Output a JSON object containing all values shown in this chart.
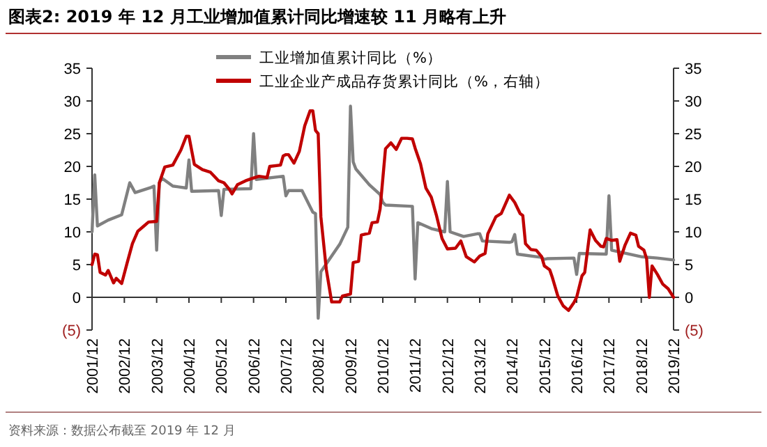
{
  "chart_data": {
    "type": "line",
    "title": "图表2:  2019 年 12 月工业增加值累计同比增速较 11 月略有上升",
    "annotations": [
      "资料来源：数据公布截至 2019 年 12 月"
    ],
    "legend": "top",
    "xlim": [
      "2001-12",
      "2019-12"
    ],
    "xticks": [
      {
        "value": "2001-12",
        "label": "2001/12"
      },
      {
        "value": "2002-12",
        "label": "2002/12"
      },
      {
        "value": "2003-12",
        "label": "2003/12"
      },
      {
        "value": "2004-12",
        "label": "2004/12"
      },
      {
        "value": "2005-12",
        "label": "2005/12"
      },
      {
        "value": "2006-12",
        "label": "2006/12"
      },
      {
        "value": "2007-12",
        "label": "2007/12"
      },
      {
        "value": "2008-12",
        "label": "2008/12"
      },
      {
        "value": "2009-12",
        "label": "2009/12"
      },
      {
        "value": "2010-12",
        "label": "2010/12"
      },
      {
        "value": "2011-12",
        "label": "2011/12"
      },
      {
        "value": "2012-12",
        "label": "2012/12"
      },
      {
        "value": "2013-12",
        "label": "2013/12"
      },
      {
        "value": "2014-12",
        "label": "2014/12"
      },
      {
        "value": "2015-12",
        "label": "2015/12"
      },
      {
        "value": "2016-12",
        "label": "2016/12"
      },
      {
        "value": "2017-12",
        "label": "2017/12"
      },
      {
        "value": "2018-12",
        "label": "2018/12"
      },
      {
        "value": "2019-12",
        "label": "2019/12"
      }
    ],
    "ylim": [
      -5,
      35
    ],
    "yticks": [
      {
        "value": -5,
        "label": "(5)"
      },
      0,
      5,
      10,
      15,
      20,
      25,
      30,
      35
    ],
    "y2lim": [
      -5,
      35
    ],
    "y2ticks": [
      {
        "value": -5,
        "label": "(5)"
      },
      0,
      5,
      10,
      15,
      20,
      25,
      30,
      35
    ],
    "series": [
      {
        "name": "工业增加值累计同比（%）",
        "color": "#808080",
        "x": [
          "2001-12",
          "2002-01",
          "2002-02",
          "2002-06",
          "2002-11",
          "2003-02",
          "2003-04",
          "2003-10",
          "2003-11",
          "2003-12",
          "2004-01",
          "2004-02",
          "2004-06",
          "2004-11",
          "2004-12",
          "2005-01",
          "2005-11",
          "2005-12",
          "2006-01",
          "2006-11",
          "2006-12",
          "2007-01",
          "2007-11",
          "2007-12",
          "2008-01",
          "2008-06",
          "2008-10",
          "2008-11",
          "2008-12",
          "2009-01",
          "2009-03",
          "2009-08",
          "2009-11",
          "2009-12",
          "2010-01",
          "2010-02",
          "2010-07",
          "2010-11",
          "2010-12",
          "2011-01",
          "2011-11",
          "2011-12",
          "2012-01",
          "2012-06",
          "2012-11",
          "2012-12",
          "2013-01",
          "2013-06",
          "2013-11",
          "2013-12",
          "2014-01",
          "2014-11",
          "2014-12",
          "2015-01",
          "2015-02",
          "2015-11",
          "2015-12",
          "2016-01",
          "2016-11",
          "2016-12",
          "2017-01",
          "2017-11",
          "2017-12",
          "2018-01",
          "2018-11",
          "2018-12",
          "2019-06",
          "2019-12"
        ],
        "values": [
          10,
          18.7,
          10.9,
          11.8,
          12.6,
          17.5,
          16,
          16.8,
          17,
          7.2,
          17.5,
          18.2,
          17,
          16.7,
          21,
          16.2,
          16.3,
          12.5,
          16.5,
          16.6,
          25,
          18,
          18.5,
          15.5,
          16.3,
          16.3,
          13,
          12.8,
          -3.2,
          3.9,
          5.1,
          8.1,
          10.7,
          29.2,
          20.7,
          19.6,
          17.2,
          15.7,
          14.5,
          14.1,
          13.9,
          2.8,
          11.4,
          10.5,
          10,
          17.7,
          10,
          9.3,
          9.7,
          9.7,
          8.6,
          8.4,
          8.5,
          9.6,
          6.6,
          6.1,
          5.8,
          5.9,
          6,
          3.5,
          6.7,
          6.6,
          15.5,
          7.2,
          6.3,
          6.2,
          6,
          5.7
        ]
      },
      {
        "name": "工业企业产成品存货累计同比（%，右轴）",
        "color": "#c00000",
        "x": [
          "2001-12",
          "2002-01",
          "2002-02",
          "2002-03",
          "2002-05",
          "2002-06",
          "2002-08",
          "2002-09",
          "2002-11",
          "2003-01",
          "2003-03",
          "2003-05",
          "2003-07",
          "2003-09",
          "2003-12",
          "2004-01",
          "2004-03",
          "2004-06",
          "2004-09",
          "2004-11",
          "2004-12",
          "2005-02",
          "2005-05",
          "2005-08",
          "2005-11",
          "2006-01",
          "2006-03",
          "2006-04",
          "2006-06",
          "2006-09",
          "2006-11",
          "2007-02",
          "2007-05",
          "2007-06",
          "2007-10",
          "2007-11",
          "2007-12",
          "2008-01",
          "2008-03",
          "2008-05",
          "2008-07",
          "2008-09",
          "2008-10",
          "2008-11",
          "2008-12",
          "2009-01",
          "2009-03",
          "2009-05",
          "2009-08",
          "2009-09",
          "2009-12",
          "2010-01",
          "2010-03",
          "2010-04",
          "2010-07",
          "2010-08",
          "2010-10",
          "2010-11",
          "2011-01",
          "2011-03",
          "2011-05",
          "2011-07",
          "2011-09",
          "2011-11",
          "2011-12",
          "2012-02",
          "2012-04",
          "2012-06",
          "2012-08",
          "2012-10",
          "2012-12",
          "2013-03",
          "2013-05",
          "2013-07",
          "2013-10",
          "2013-12",
          "2014-02",
          "2014-03",
          "2014-06",
          "2014-08",
          "2014-11",
          "2015-01",
          "2015-03",
          "2015-04",
          "2015-05",
          "2015-07",
          "2015-09",
          "2015-11",
          "2015-12",
          "2016-02",
          "2016-03",
          "2016-05",
          "2016-07",
          "2016-09",
          "2016-11",
          "2016-12",
          "2017-02",
          "2017-03",
          "2017-05",
          "2017-07",
          "2017-09",
          "2017-10",
          "2017-11",
          "2018-01",
          "2018-03",
          "2018-04",
          "2018-06",
          "2018-08",
          "2018-10",
          "2018-11",
          "2019-01",
          "2019-02",
          "2019-03",
          "2019-04",
          "2019-06",
          "2019-08",
          "2019-10",
          "2019-12"
        ],
        "values": [
          5,
          6.6,
          6.5,
          3.8,
          3.4,
          4.1,
          2.2,
          2.9,
          2.1,
          5.2,
          8.2,
          10.1,
          10.8,
          11.5,
          11.6,
          17.5,
          19.9,
          20.2,
          22.5,
          24.6,
          24.6,
          20.3,
          19.5,
          19.1,
          17.8,
          17.5,
          16.5,
          15.8,
          17.2,
          17.8,
          18.1,
          18.5,
          18.3,
          20,
          20.2,
          21.6,
          21.8,
          21.8,
          20.5,
          22.3,
          26.2,
          28.5,
          28.5,
          25.5,
          25,
          12.3,
          4.3,
          -0.7,
          -0.7,
          0.2,
          0.5,
          5.3,
          5.5,
          9.5,
          9.8,
          11.4,
          11.5,
          13.5,
          22.7,
          23.6,
          22.6,
          24.3,
          24.3,
          24.2,
          22.8,
          20.4,
          16.7,
          15.3,
          12.4,
          9,
          7.4,
          7.5,
          8.6,
          6.2,
          5.4,
          6.3,
          6.7,
          9.7,
          12.3,
          12.8,
          15.6,
          14.5,
          12.8,
          12.5,
          8.2,
          7.3,
          7.2,
          6.2,
          4.8,
          4.2,
          3,
          0.2,
          -1.3,
          -2,
          -0.8,
          0,
          3.3,
          3.8,
          10.3,
          8.7,
          7.8,
          7.7,
          9,
          8.7,
          8.8,
          5.5,
          8,
          9.8,
          9.5,
          7.8,
          7.2,
          5.9,
          0,
          4.8,
          3.5,
          2,
          1.3,
          0
        ]
      }
    ]
  }
}
